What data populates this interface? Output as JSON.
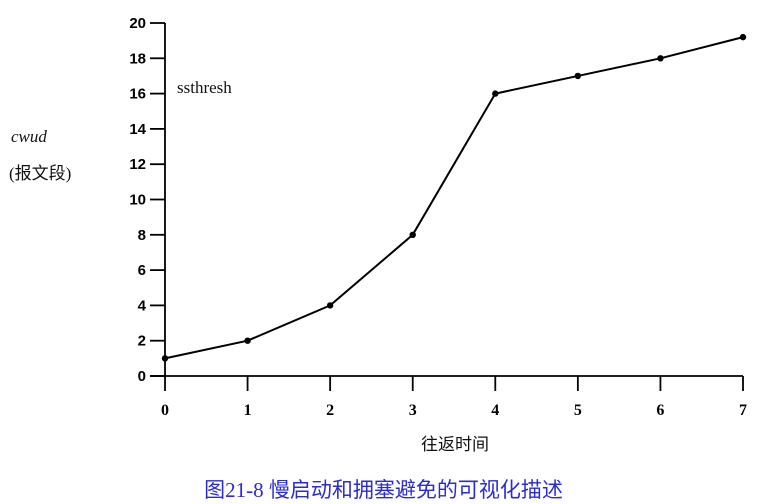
{
  "chart_data": {
    "type": "line",
    "title": "",
    "xlabel": "往返时间",
    "ylabel": [
      "cwud",
      "(报文段)"
    ],
    "x": [
      0,
      1,
      2,
      3,
      4,
      5,
      6,
      7
    ],
    "series": [
      {
        "name": "cwnd",
        "values": [
          1,
          2,
          4,
          8,
          16,
          17,
          18,
          19.2
        ]
      }
    ],
    "xticks": [
      "0",
      "1",
      "2",
      "3",
      "4",
      "5",
      "6",
      "7"
    ],
    "yticks": [
      "0",
      "2",
      "4",
      "6",
      "8",
      "10",
      "12",
      "14",
      "16",
      "18",
      "20"
    ],
    "xlim": [
      0,
      7
    ],
    "ylim": [
      0,
      20
    ],
    "grid": false,
    "annotations": [
      {
        "text": "ssthresh",
        "y": 16
      }
    ],
    "markers": true
  },
  "labels": {
    "ylabel_italic": "cwud",
    "ylabel_unit": "(报文段)",
    "xlabel": "往返时间",
    "annotation": "ssthresh",
    "caption": "图21-8   慢启动和拥塞避免的可视化描述"
  },
  "colors": {
    "line": "#000000",
    "caption": "#2b2bd6"
  }
}
